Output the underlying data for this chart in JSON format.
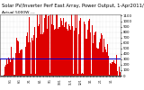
{
  "title": "Solar PV/Inverter Perf East Array, Power Output, 1-Apr2011/24",
  "subtitle": "Actual 5000W ---",
  "bg_color": "#ffffff",
  "plot_bg_color": "#ffffff",
  "bar_color": "#dd0000",
  "avg_line_color": "#0000cc",
  "grid_color": "#cccccc",
  "ylim": [
    0,
    1124
  ],
  "ytick_vals": [
    0,
    100,
    200,
    300,
    400,
    500,
    600,
    700,
    800,
    900,
    1000,
    1100
  ],
  "avg_value": 310,
  "n_bars": 365,
  "title_fontsize": 3.8,
  "subtitle_fontsize": 3.2,
  "tick_fontsize": 2.8,
  "seed": 42
}
